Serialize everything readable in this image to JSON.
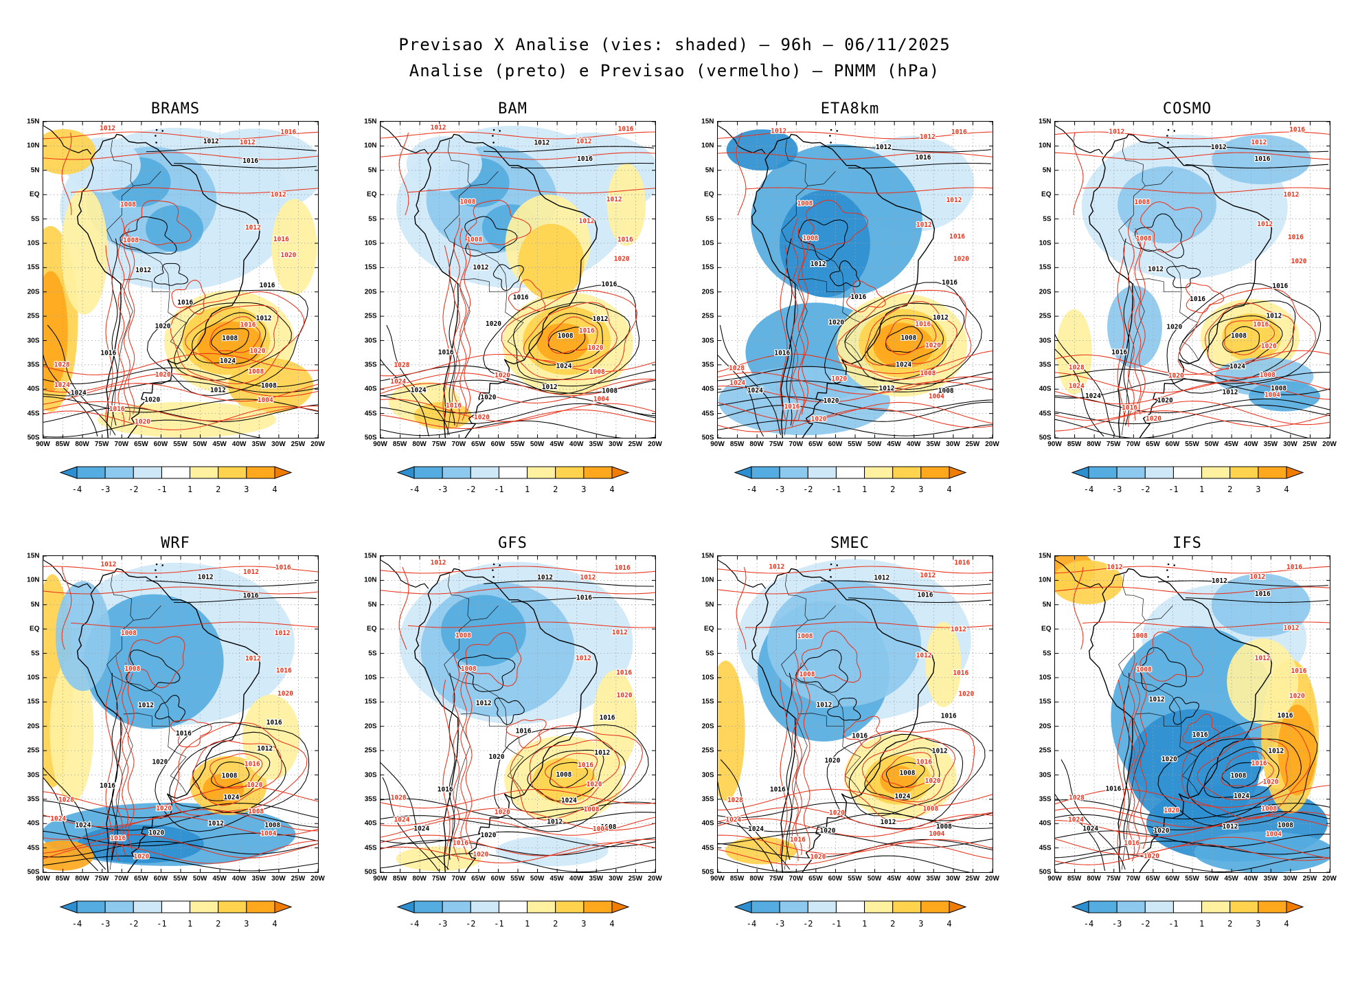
{
  "title": "Previsao X Analise (vies: shaded) — 96h — 06/11/2025",
  "subtitle": "Analise (preto) e Previsao (vermelho) — PNMM (hPa)",
  "panels": [
    {
      "name": "BRAMS"
    },
    {
      "name": "BAM"
    },
    {
      "name": "ETA8km"
    },
    {
      "name": "COSMO"
    },
    {
      "name": "WRF"
    },
    {
      "name": "GFS"
    },
    {
      "name": "SMEC"
    },
    {
      "name": "IFS"
    }
  ],
  "axes": {
    "lat_ticks": [
      "15N",
      "10N",
      "5N",
      "EQ",
      "5S",
      "10S",
      "15S",
      "20S",
      "25S",
      "30S",
      "35S",
      "40S",
      "45S",
      "50S"
    ],
    "lon_ticks": [
      "90W",
      "85W",
      "80W",
      "75W",
      "70W",
      "65W",
      "60W",
      "55W",
      "50W",
      "45W",
      "40W",
      "35W",
      "30W",
      "25W",
      "20W"
    ]
  },
  "colorbar": {
    "tick_labels": [
      "-4",
      "-3",
      "-2",
      "-1",
      "1",
      "2",
      "3",
      "4"
    ],
    "colors": {
      "arrow_left": "#2e8fd0",
      "cells": [
        "#55ace0",
        "#8dc9ee",
        "#cfe8f8",
        "#ffffff",
        "#fff1a0",
        "#ffd34d",
        "#ffa81e"
      ],
      "arrow_right": "#f07c00"
    }
  },
  "palette": {
    "blue_strong": "#2e8fd0",
    "blue_med": "#55ace0",
    "blue_light": "#8dc9ee",
    "blue_pale": "#cfe8f8",
    "yellow_pale": "#fff1a0",
    "yellow": "#ffd34d",
    "orange": "#ffa81e",
    "orange_deep": "#f07c00"
  },
  "contour_colors": {
    "analysis": "#000000",
    "forecast": "#e8321a"
  },
  "contour_labels": {
    "black": [
      "1012",
      "1016",
      "1020",
      "1008",
      "1012",
      "1016",
      "1024",
      "1012",
      "1008",
      "1016",
      "1012",
      "1024",
      "1020",
      "1016"
    ],
    "red": [
      "1012",
      "1012",
      "1016",
      "1008",
      "1012",
      "1016",
      "1020",
      "1012",
      "1008",
      "1016",
      "1020",
      "1028",
      "1024",
      "1020",
      "1008",
      "1004",
      "1016",
      "1020"
    ]
  },
  "chart_data": {
    "type": "heatmap",
    "title": "Previsao X Analise (vies: shaded) — 96h — 06/11/2025",
    "subtitle": "Analise (preto) e Previsao (vermelho) — PNMM (hPa)",
    "variable": "PNMM (hPa)",
    "lead_time": "96h",
    "date": "06/11/2025",
    "models": [
      "BRAMS",
      "BAM",
      "ETA8km",
      "COSMO",
      "WRF",
      "GFS",
      "SMEC",
      "IFS"
    ],
    "shading": {
      "meaning": "vies (Previsao - Analise)",
      "levels": [
        -4,
        -3,
        -2,
        -1,
        1,
        2,
        3,
        4
      ],
      "units": "hPa"
    },
    "contours": {
      "black": "Analise (preto)",
      "red": "Previsao (vermelho)",
      "visible_isobar_values": [
        1004,
        1008,
        1012,
        1016,
        1020,
        1024,
        1028
      ]
    },
    "x_axis": {
      "ticks": [
        "90W",
        "85W",
        "80W",
        "75W",
        "70W",
        "65W",
        "60W",
        "55W",
        "50W",
        "45W",
        "40W",
        "35W",
        "30W",
        "25W",
        "20W"
      ],
      "range": [
        "90W",
        "20W"
      ]
    },
    "y_axis": {
      "ticks": [
        "15N",
        "10N",
        "5N",
        "EQ",
        "5S",
        "10S",
        "15S",
        "20S",
        "25S",
        "30S",
        "35S",
        "40S",
        "45S",
        "50S"
      ],
      "range": [
        "50S",
        "15N"
      ]
    },
    "grid": true,
    "layout": "2 rows x 4 columns of South America maps, one bias colorbar per panel",
    "panel_bias_summaries": [
      {
        "model": "BRAMS",
        "summary": "Negative (blue) bias over N/NE South America; strong positive (orange) bias over SE Atlantic and Pacific west of Chile"
      },
      {
        "model": "BAM",
        "summary": "Weak negative bias over NW continent; positive bias along E Brazil coast and SE Atlantic center near 40W/30S"
      },
      {
        "model": "ETA8km",
        "summary": "Widespread negative bias over the continent; positive core in SE Atlantic near 40W/30S"
      },
      {
        "model": "COSMO",
        "summary": "Mostly weak bias; scattered negative patches; moderate positive core in SW Atlantic"
      },
      {
        "model": "WRF",
        "summary": "Negative bias over central continent and far south oceans; positive bias along Pacific edge and SW Atlantic core"
      },
      {
        "model": "GFS",
        "summary": "Moderate negative bias over tropical continent; weak positive bias in SE Atlantic"
      },
      {
        "model": "SMEC",
        "summary": "Negative bias over continent; positive core in SW Atlantic and along Pacific edge"
      },
      {
        "model": "IFS",
        "summary": "Strong negative bias over S/SE continent and S Atlantic; positive bias NW corner and east of 40W near 25S"
      }
    ]
  }
}
